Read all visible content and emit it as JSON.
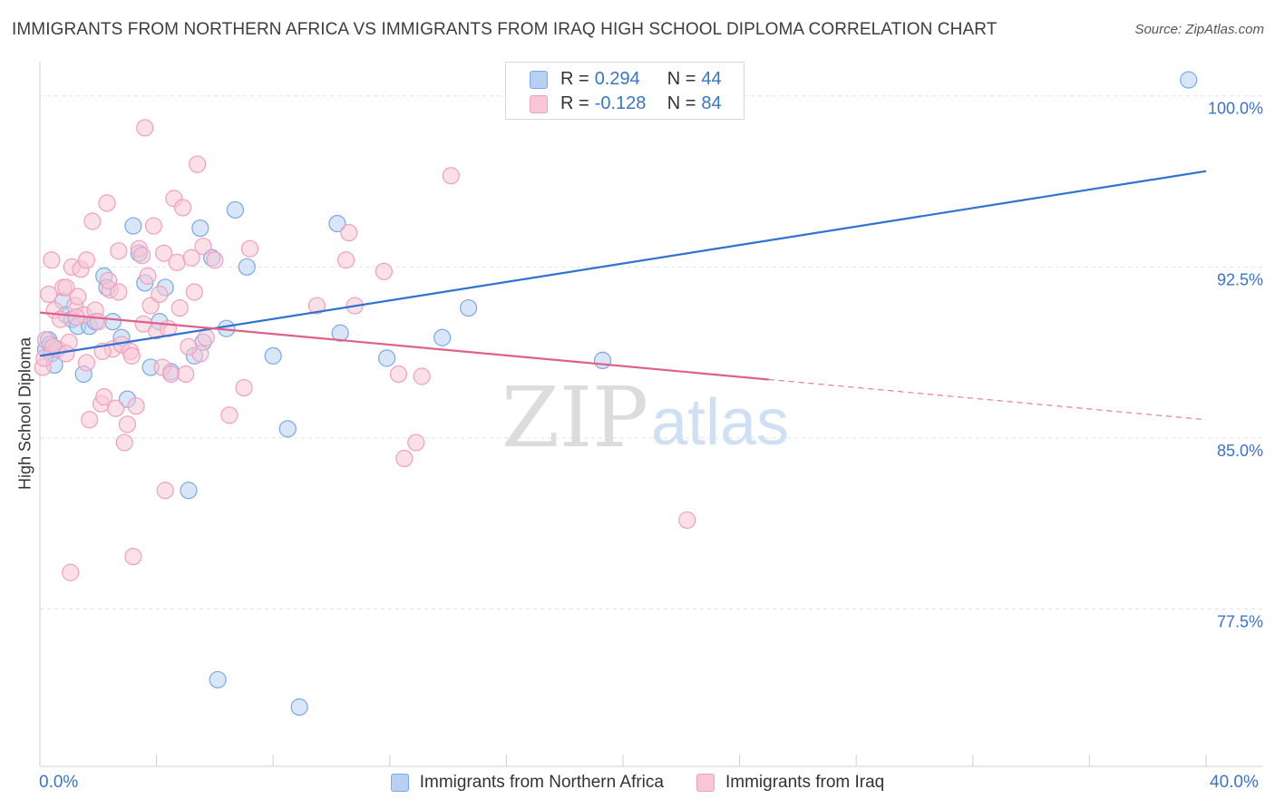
{
  "title": "IMMIGRANTS FROM NORTHERN AFRICA VS IMMIGRANTS FROM IRAQ HIGH SCHOOL DIPLOMA CORRELATION CHART",
  "source": "Source: ZipAtlas.com",
  "watermark": {
    "zip": "ZIP",
    "atlas": "atlas"
  },
  "legend": {
    "r_label": "R =",
    "n_label": "N =",
    "series": [
      {
        "r": "0.294",
        "n": "44"
      },
      {
        "r": "-0.128",
        "n": "84"
      }
    ]
  },
  "chart_data": {
    "type": "scatter",
    "title": "IMMIGRANTS FROM NORTHERN AFRICA VS IMMIGRANTS FROM IRAQ HIGH SCHOOL DIPLOMA CORRELATION CHART",
    "xlabel": "",
    "ylabel": "High School Diploma",
    "xlim": [
      0,
      40
    ],
    "ylim": [
      70.6,
      101.5
    ],
    "x_tick_labels": [
      "0.0%",
      "40.0%"
    ],
    "y_ticks": [
      77.5,
      85.0,
      92.5,
      100.0
    ],
    "y_tick_labels": [
      "77.5%",
      "85.0%",
      "92.5%",
      "100.0%"
    ],
    "grid": true,
    "legend_position": "bottom",
    "series": [
      {
        "name": "Immigrants from Northern Africa",
        "color": "#7aa8e8",
        "fill": "#b8d1f3",
        "line_color": "#2f72d0",
        "trend": {
          "x0": 0,
          "y0": 88.6,
          "x1": 40,
          "y1": 96.7,
          "dashed_from": null
        },
        "points": [
          [
            0.2,
            88.9
          ],
          [
            0.3,
            89.3
          ],
          [
            0.4,
            88.7
          ],
          [
            0.5,
            88.2
          ],
          [
            0.6,
            88.9
          ],
          [
            0.8,
            91.0
          ],
          [
            0.9,
            90.4
          ],
          [
            1.1,
            90.2
          ],
          [
            1.3,
            89.9
          ],
          [
            1.5,
            87.8
          ],
          [
            1.7,
            89.9
          ],
          [
            1.9,
            90.1
          ],
          [
            2.2,
            92.1
          ],
          [
            2.3,
            91.6
          ],
          [
            2.5,
            90.1
          ],
          [
            2.8,
            89.4
          ],
          [
            3.0,
            86.7
          ],
          [
            3.2,
            94.3
          ],
          [
            3.4,
            93.1
          ],
          [
            3.6,
            91.8
          ],
          [
            3.8,
            88.1
          ],
          [
            4.1,
            90.1
          ],
          [
            4.3,
            91.6
          ],
          [
            4.5,
            87.9
          ],
          [
            5.1,
            82.7
          ],
          [
            5.3,
            88.6
          ],
          [
            5.5,
            94.2
          ],
          [
            5.6,
            89.2
          ],
          [
            5.9,
            92.9
          ],
          [
            6.1,
            74.4
          ],
          [
            6.4,
            89.8
          ],
          [
            6.7,
            95.0
          ],
          [
            7.1,
            92.5
          ],
          [
            8.0,
            88.6
          ],
          [
            8.5,
            85.4
          ],
          [
            8.9,
            73.2
          ],
          [
            10.2,
            94.4
          ],
          [
            10.3,
            89.6
          ],
          [
            11.9,
            88.5
          ],
          [
            13.8,
            89.4
          ],
          [
            14.7,
            90.7
          ],
          [
            19.3,
            88.4
          ],
          [
            39.4,
            100.7
          ],
          [
            0.35,
            89.1
          ]
        ]
      },
      {
        "name": "Immigrants from Iraq",
        "color": "#f0a0bc",
        "fill": "#f8c6d6",
        "line_color": "#e0608a",
        "trend": {
          "x0": 0,
          "y0": 90.5,
          "x1": 40,
          "y1": 85.8,
          "dashed_from": 25
        },
        "points": [
          [
            0.1,
            88.1
          ],
          [
            0.2,
            89.3
          ],
          [
            0.3,
            91.3
          ],
          [
            0.4,
            92.8
          ],
          [
            0.5,
            90.6
          ],
          [
            0.6,
            88.9
          ],
          [
            0.7,
            90.2
          ],
          [
            0.8,
            91.6
          ],
          [
            0.9,
            91.6
          ],
          [
            1.0,
            89.2
          ],
          [
            1.1,
            92.5
          ],
          [
            1.2,
            90.8
          ],
          [
            1.3,
            91.2
          ],
          [
            1.4,
            92.4
          ],
          [
            1.5,
            90.4
          ],
          [
            1.6,
            88.3
          ],
          [
            1.7,
            85.8
          ],
          [
            1.8,
            94.5
          ],
          [
            1.9,
            90.6
          ],
          [
            2.0,
            90.1
          ],
          [
            2.1,
            86.5
          ],
          [
            2.2,
            86.8
          ],
          [
            2.3,
            95.3
          ],
          [
            2.4,
            91.5
          ],
          [
            2.5,
            88.9
          ],
          [
            2.6,
            86.3
          ],
          [
            2.7,
            93.2
          ],
          [
            2.8,
            89.1
          ],
          [
            2.9,
            84.8
          ],
          [
            3.0,
            85.6
          ],
          [
            3.1,
            88.8
          ],
          [
            3.2,
            79.8
          ],
          [
            3.3,
            86.4
          ],
          [
            3.4,
            93.3
          ],
          [
            3.5,
            93.0
          ],
          [
            3.6,
            98.6
          ],
          [
            3.7,
            92.1
          ],
          [
            3.8,
            90.8
          ],
          [
            3.9,
            94.3
          ],
          [
            4.0,
            89.7
          ],
          [
            4.1,
            91.3
          ],
          [
            4.2,
            88.1
          ],
          [
            4.3,
            82.7
          ],
          [
            4.4,
            89.8
          ],
          [
            4.5,
            87.8
          ],
          [
            4.6,
            95.5
          ],
          [
            4.7,
            92.7
          ],
          [
            4.8,
            90.7
          ],
          [
            4.9,
            95.1
          ],
          [
            5.0,
            87.8
          ],
          [
            5.2,
            92.9
          ],
          [
            5.3,
            91.4
          ],
          [
            5.4,
            97.0
          ],
          [
            5.5,
            88.7
          ],
          [
            5.6,
            93.4
          ],
          [
            5.7,
            89.4
          ],
          [
            6.0,
            92.8
          ],
          [
            6.5,
            86.0
          ],
          [
            7.0,
            87.2
          ],
          [
            7.2,
            93.3
          ],
          [
            9.5,
            90.8
          ],
          [
            10.5,
            92.8
          ],
          [
            10.8,
            90.8
          ],
          [
            11.8,
            92.3
          ],
          [
            12.3,
            87.8
          ],
          [
            12.5,
            84.1
          ],
          [
            12.9,
            84.8
          ],
          [
            13.1,
            87.7
          ],
          [
            14.1,
            96.5
          ],
          [
            22.2,
            81.4
          ],
          [
            0.45,
            89.0
          ],
          [
            1.05,
            79.1
          ],
          [
            2.15,
            88.8
          ],
          [
            3.15,
            88.6
          ],
          [
            4.25,
            93.1
          ],
          [
            10.6,
            94.0
          ],
          [
            5.1,
            89.0
          ],
          [
            2.7,
            91.4
          ],
          [
            1.6,
            92.8
          ],
          [
            0.9,
            88.7
          ],
          [
            3.55,
            90.0
          ],
          [
            2.35,
            91.9
          ],
          [
            1.25,
            90.3
          ],
          [
            0.15,
            88.5
          ]
        ]
      }
    ]
  }
}
